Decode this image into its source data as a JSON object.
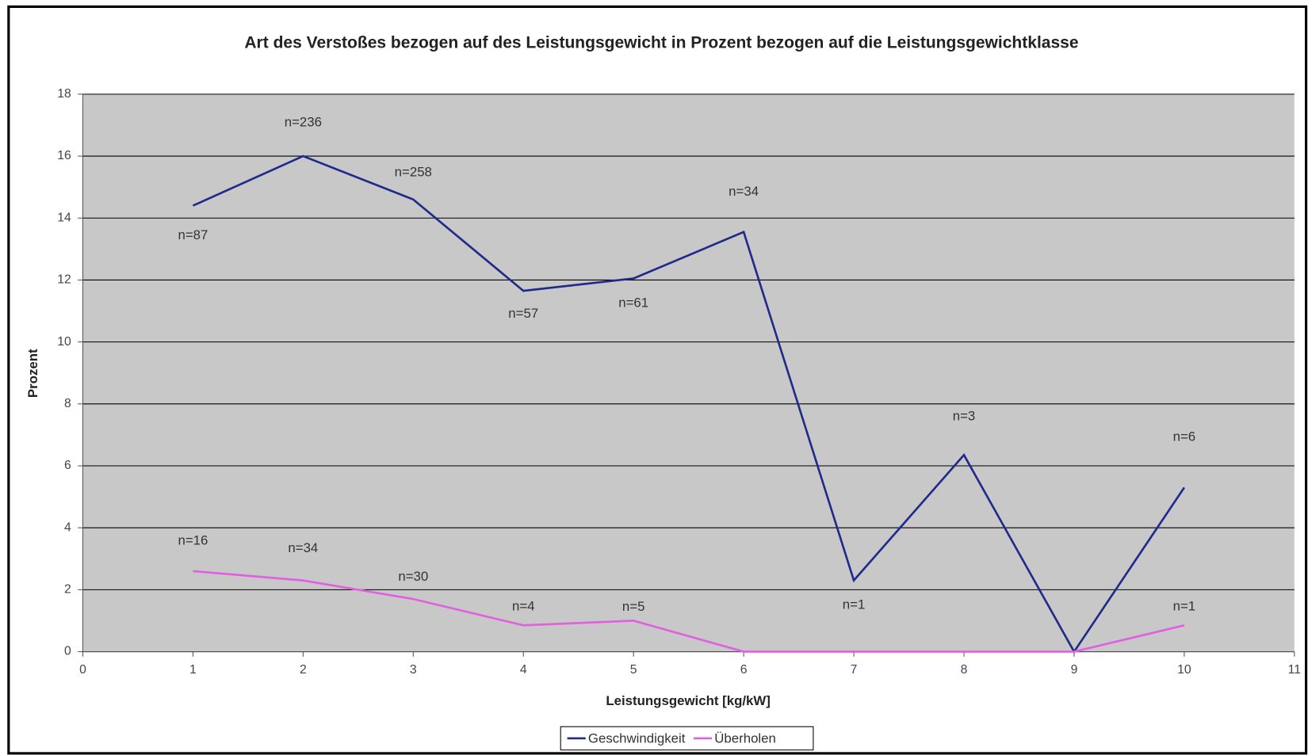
{
  "chart_data": {
    "type": "line",
    "title": "Art des Verstoßes bezogen auf des Leistungsgewicht in Prozent bezogen auf die Leistungsgewichtklasse",
    "x_label": "Leistungsgewicht [kg/kW]",
    "y_label": "Prozent",
    "x": [
      1,
      2,
      3,
      4,
      5,
      6,
      7,
      8,
      9,
      10
    ],
    "series": [
      {
        "name": "Geschwindigkeit",
        "color": "#1f2a8a",
        "values": [
          14.4,
          16.0,
          14.6,
          11.65,
          12.05,
          13.55,
          2.3,
          6.35,
          0,
          5.3
        ],
        "point_labels": [
          "n=87",
          "n=236",
          "n=258",
          "n=57",
          "n=61",
          "n=34",
          "n=1",
          "n=3",
          null,
          "n=6"
        ]
      },
      {
        "name": "Überholen",
        "color": "#e060e0",
        "values": [
          2.6,
          2.3,
          1.7,
          0.85,
          1.0,
          0,
          0,
          0,
          0,
          0.85
        ],
        "point_labels": [
          "n=16",
          "n=34",
          "n=30",
          "n=4",
          "n=5",
          null,
          null,
          null,
          null,
          "n=1"
        ]
      }
    ],
    "xlim": [
      0,
      11
    ],
    "xticks": [
      0,
      1,
      2,
      3,
      4,
      5,
      6,
      7,
      8,
      9,
      10,
      11
    ],
    "ylim": [
      0,
      18
    ],
    "yticks": [
      0,
      2,
      4,
      6,
      8,
      10,
      12,
      14,
      16,
      18
    ],
    "grid": true,
    "legend": "bottom"
  }
}
